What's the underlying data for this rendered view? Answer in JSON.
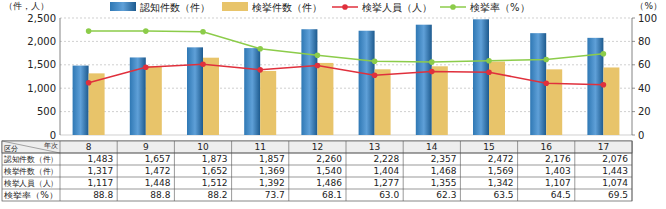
{
  "chart_data": {
    "type": "bar",
    "y_label": "（件，人）",
    "y2_label": "（%）",
    "row_header": "区分",
    "x_label": "年次",
    "categories": [
      8,
      9,
      10,
      11,
      12,
      13,
      14,
      15,
      16,
      17
    ],
    "ylim": [
      0,
      2500
    ],
    "yticks": [
      0,
      500,
      {
        "value": 1000,
        "label": "1,000"
      },
      {
        "value": 1500,
        "label": "1,500"
      },
      {
        "value": 2000,
        "label": "2,000"
      },
      {
        "value": 2500,
        "label": "2,500"
      }
    ],
    "y2lim": [
      0,
      100
    ],
    "y2ticks": [
      0,
      20,
      40,
      60,
      80,
      100
    ],
    "grid": true,
    "series": [
      {
        "name": "認知件数（件）",
        "type": "bar",
        "color": "#2f78b4",
        "values": [
          1483,
          1657,
          1873,
          1857,
          2260,
          2228,
          2357,
          2472,
          2176,
          2076
        ],
        "value_labels": [
          "1,483",
          "1,657",
          "1,873",
          "1,857",
          "2,260",
          "2,228",
          "2,357",
          "2,472",
          "2,176",
          "2,076"
        ]
      },
      {
        "name": "検挙件数（件）",
        "type": "bar",
        "color": "#e8c46a",
        "values": [
          1317,
          1472,
          1652,
          1369,
          1540,
          1404,
          1468,
          1569,
          1403,
          1443
        ],
        "value_labels": [
          "1,317",
          "1,472",
          "1,652",
          "1,369",
          "1,540",
          "1,404",
          "1,468",
          "1,569",
          "1,403",
          "1,443"
        ]
      },
      {
        "name": "検挙人員（人）",
        "type": "line",
        "color": "#e0303c",
        "marker": "circle",
        "line_style": "solid",
        "values": [
          1117,
          1448,
          1512,
          1392,
          1486,
          1277,
          1355,
          1342,
          1107,
          1074
        ],
        "value_labels": [
          "1,117",
          "1,448",
          "1,512",
          "1,392",
          "1,486",
          "1,277",
          "1,355",
          "1,342",
          "1,107",
          "1,074"
        ]
      },
      {
        "name": "検挙率（%）",
        "type": "line",
        "axis": "y2",
        "color": "#8ccc4a",
        "marker": "circle",
        "line_style": "solid",
        "values": [
          88.8,
          88.8,
          88.2,
          73.7,
          68.1,
          63.0,
          62.3,
          63.5,
          64.5,
          69.5
        ],
        "value_labels": [
          "88.8",
          "88.8",
          "88.2",
          "73.7",
          "68.1",
          "63.0",
          "62.3",
          "63.5",
          "64.5",
          "69.5"
        ]
      }
    ]
  }
}
